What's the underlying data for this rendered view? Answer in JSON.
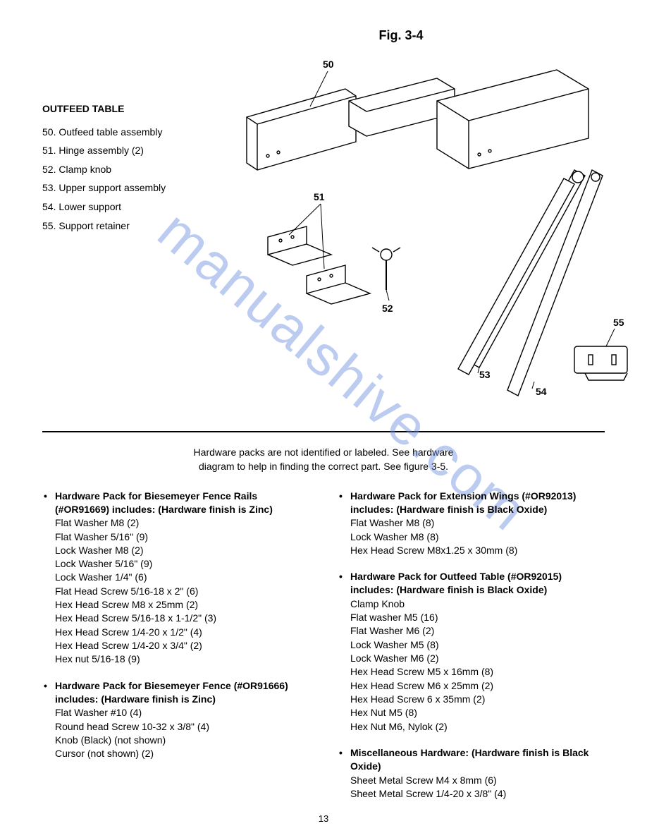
{
  "figure_title": "Fig. 3-4",
  "legend": {
    "heading": "OUTFEED TABLE",
    "items": [
      {
        "num": "50.",
        "text": "Outfeed table assembly"
      },
      {
        "num": "51.",
        "text": "Hinge assembly (2)"
      },
      {
        "num": "52.",
        "text": "Clamp knob"
      },
      {
        "num": "53.",
        "text": "Upper support assembly"
      },
      {
        "num": "54.",
        "text": "Lower support"
      },
      {
        "num": "55.",
        "text": "Support retainer"
      }
    ]
  },
  "diagram": {
    "labels": {
      "l50": "50",
      "l51": "51",
      "l52": "52",
      "l53": "53",
      "l54": "54",
      "l55": "55"
    },
    "stroke": "#000000",
    "fill": "#ffffff"
  },
  "watermark_text": "manualshive.com",
  "intro_line1": "Hardware packs are not identified or labeled.  See hardware",
  "intro_line2": "diagram to help in finding the correct part.  See figure 3-5.",
  "left_col": [
    {
      "title": "Hardware Pack for Biesemeyer Fence Rails (#OR91669) includes: (Hardware finish is Zinc)",
      "lines": [
        "Flat Washer M8 (2)",
        "Flat Washer 5/16\" (9)",
        "Lock Washer M8 (2)",
        "Lock Washer 5/16\" (9)",
        "Lock Washer 1/4\" (6)",
        "Flat Head Screw 5/16-18 x 2\" (6)",
        "Hex Head Screw M8 x 25mm (2)",
        "Hex Head Screw 5/16-18 x 1-1/2\" (3)",
        "Hex Head Screw 1/4-20 x 1/2\" (4)",
        "Hex Head Screw 1/4-20 x 3/4\" (2)",
        "Hex nut 5/16-18 (9)"
      ]
    },
    {
      "title": "Hardware Pack for Biesemeyer Fence (#OR91666) includes: (Hardware finish is Zinc)",
      "lines": [
        "Flat Washer #10 (4)",
        "Round head Screw 10-32 x 3/8\" (4)",
        "Knob (Black) (not shown)",
        "Cursor (not shown) (2)"
      ]
    }
  ],
  "right_col": [
    {
      "title": "Hardware Pack for Extension Wings (#OR92013) includes: (Hardware finish is Black Oxide)",
      "lines": [
        "Flat Washer M8 (8)",
        "Lock Washer M8 (8)",
        "Hex Head Screw M8x1.25 x 30mm (8)"
      ]
    },
    {
      "title": "Hardware Pack for Outfeed Table (#OR92015) includes: (Hardware finish is Black Oxide)",
      "lines": [
        "Clamp Knob",
        "Flat washer M5 (16)",
        "Flat Washer M6 (2)",
        "Lock Washer M5 (8)",
        "Lock Washer M6 (2)",
        "Hex Head Screw M5 x 16mm (8)",
        "Hex Head Screw M6 x 25mm (2)",
        "Hex Head Screw 6 x 35mm (2)",
        "Hex Nut M5 (8)",
        "Hex Nut M6, Nylok (2)"
      ]
    },
    {
      "title": "Miscellaneous Hardware: (Hardware finish is Black Oxide)",
      "lines": [
        "Sheet Metal Screw M4 x 8mm (6)",
        "Sheet Metal Screw 1/4-20 x 3/8\" (4)"
      ]
    }
  ],
  "page_number": "13"
}
